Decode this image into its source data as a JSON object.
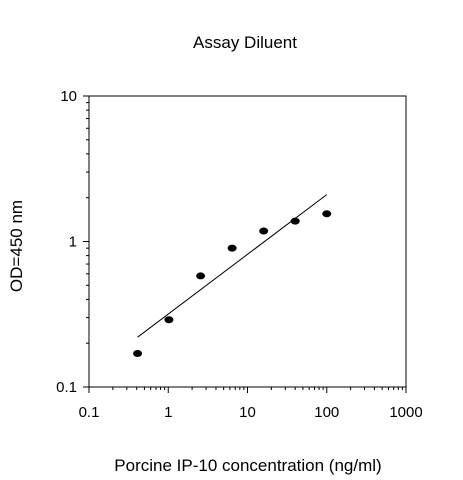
{
  "chart_data": {
    "type": "scatter",
    "title": "Assay Diluent",
    "xlabel": "Porcine IP-10 concentration (ng/ml)",
    "ylabel": "OD=450 nm",
    "xscale": "log",
    "yscale": "log",
    "xlim": [
      0.1,
      1000
    ],
    "ylim": [
      0.1,
      10
    ],
    "xticks": [
      {
        "value": 0.1,
        "label": "0.1"
      },
      {
        "value": 1,
        "label": "1"
      },
      {
        "value": 10,
        "label": "10"
      },
      {
        "value": 100,
        "label": "100"
      },
      {
        "value": 1000,
        "label": "1000"
      }
    ],
    "yticks": [
      {
        "value": 0.1,
        "label": "0.1"
      },
      {
        "value": 1,
        "label": "1"
      },
      {
        "value": 10,
        "label": "10"
      }
    ],
    "series": [
      {
        "x": [
          0.41,
          1.02,
          2.56,
          6.4,
          16,
          40,
          100
        ],
        "y": [
          0.17,
          0.29,
          0.58,
          0.9,
          1.18,
          1.38,
          1.55
        ]
      }
    ],
    "fit_line": {
      "x": [
        0.41,
        100
      ],
      "y": [
        0.22,
        2.1
      ]
    },
    "grid": false,
    "legend": "none",
    "colors": {
      "marker": "#000000",
      "line": "#000000",
      "axis": "#000000"
    }
  }
}
